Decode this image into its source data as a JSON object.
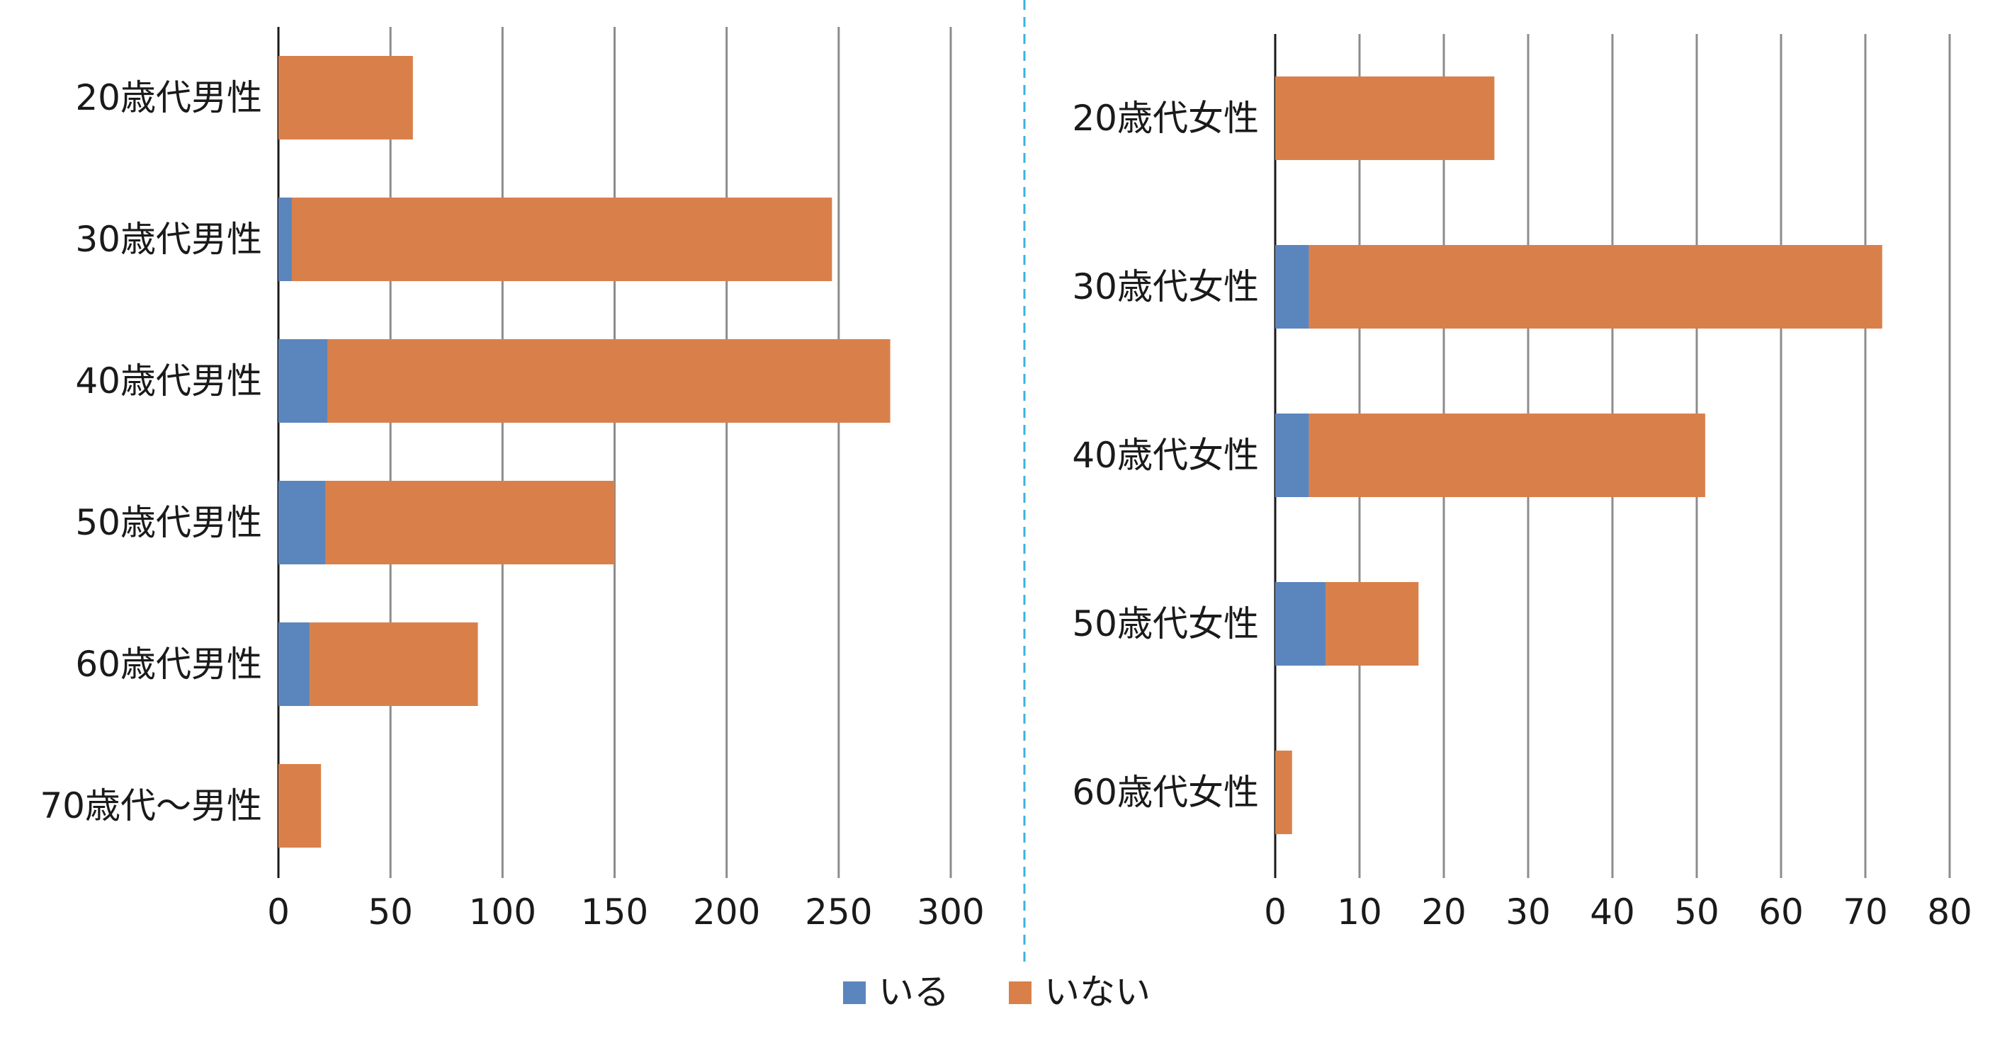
{
  "colors": {
    "iru": "#5b85bd",
    "inai": "#d9804a",
    "grid": "#8c8c8c",
    "axis": "#1a1a1a",
    "divider": "#3fb1e0"
  },
  "legend": {
    "items": [
      {
        "label": "いる",
        "color": "#5b85bd"
      },
      {
        "label": "いない",
        "color": "#d9804a"
      }
    ],
    "placement": "bottom-center"
  },
  "chart_data": [
    {
      "type": "bar",
      "orientation": "horizontal",
      "stacked": true,
      "categories": [
        "20歳代男性",
        "30歳代男性",
        "40歳代男性",
        "50歳代男性",
        "60歳代男性",
        "70歳代〜男性"
      ],
      "series": [
        {
          "name": "いる",
          "values": [
            0,
            6,
            22,
            21,
            14,
            0
          ]
        },
        {
          "name": "いない",
          "values": [
            60,
            241,
            251,
            129,
            75,
            19
          ]
        }
      ],
      "xlim": [
        0,
        300
      ],
      "xticks": [
        "0",
        "50",
        "100",
        "150",
        "200",
        "250",
        "300"
      ],
      "grid": true
    },
    {
      "type": "bar",
      "orientation": "horizontal",
      "stacked": true,
      "categories": [
        "20歳代女性",
        "30歳代女性",
        "40歳代女性",
        "50歳代女性",
        "60歳代女性"
      ],
      "series": [
        {
          "name": "いる",
          "values": [
            0,
            4,
            4,
            6,
            0
          ]
        },
        {
          "name": "いない",
          "values": [
            26,
            68,
            47,
            11,
            2
          ]
        }
      ],
      "xlim": [
        0,
        80
      ],
      "xticks": [
        "0",
        "10",
        "20",
        "30",
        "40",
        "50",
        "60",
        "70",
        "80"
      ],
      "grid": true
    }
  ]
}
